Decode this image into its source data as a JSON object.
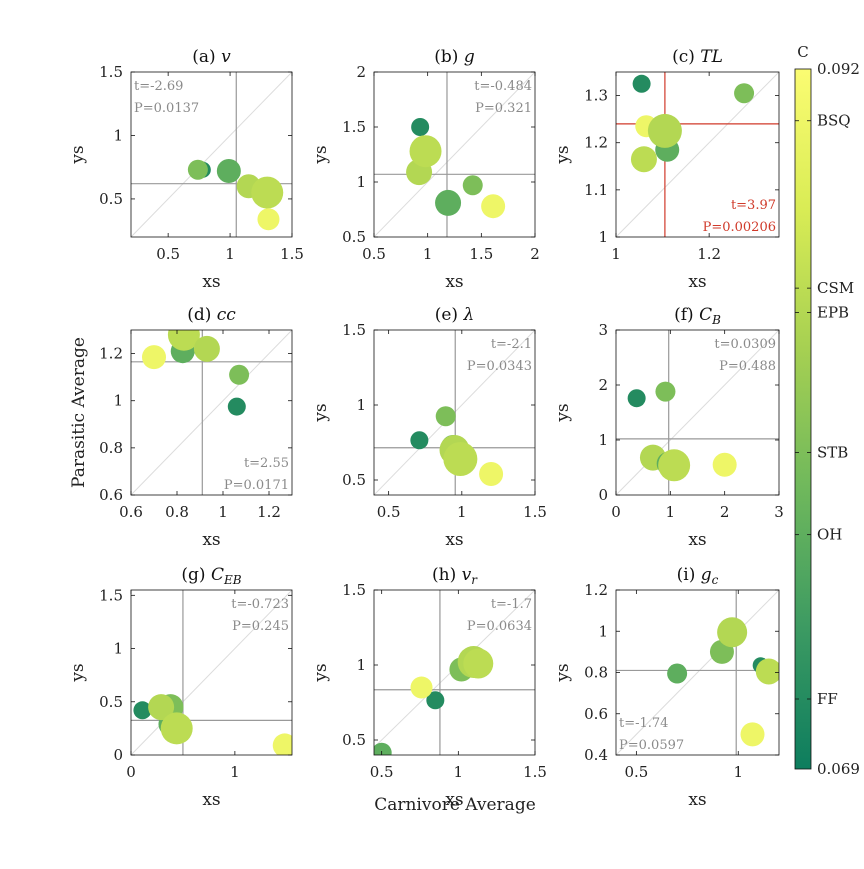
{
  "figure": {
    "supxlabel": "Carnivore Average",
    "supylabel": "Parasitic Average",
    "colorbar": {
      "title": "C",
      "min_label": "0.069",
      "max_label": "0.092",
      "min": 0.069,
      "max": 0.092,
      "colors": [
        "#0d7d5e",
        "#3c9a62",
        "#6fb85c",
        "#a6d052",
        "#d9ec55",
        "#fbfc72"
      ],
      "ticks": [
        {
          "label": "BSQ",
          "value": 0.0903
        },
        {
          "label": "CSM",
          "value": 0.0848
        },
        {
          "label": "EPB",
          "value": 0.084
        },
        {
          "label": "STB",
          "value": 0.0794
        },
        {
          "label": "OH",
          "value": 0.0767
        },
        {
          "label": "FF",
          "value": 0.0713
        }
      ]
    }
  },
  "chart_data": [
    {
      "type": "scatter",
      "title": "(a) v",
      "xlabel": "xs",
      "ylabel": "ys",
      "xlim": [
        0.2,
        1.5
      ],
      "ylim": [
        0.2,
        1.5
      ],
      "xticks": [
        0.5,
        1,
        1.5
      ],
      "yticks": [
        0.5,
        1,
        1.5
      ],
      "vline": 1.05,
      "hline": 0.62,
      "stat": {
        "t": "t=-2.69",
        "p": "P=0.0137",
        "pos": "top-left",
        "significant": false
      },
      "points": [
        {
          "x": 0.78,
          "y": 0.73,
          "c": 0.0713,
          "s": 8
        },
        {
          "x": 0.74,
          "y": 0.73,
          "c": 0.0794,
          "s": 10
        },
        {
          "x": 0.99,
          "y": 0.72,
          "c": 0.0767,
          "s": 12
        },
        {
          "x": 1.15,
          "y": 0.6,
          "c": 0.084,
          "s": 12
        },
        {
          "x": 1.3,
          "y": 0.55,
          "c": 0.0848,
          "s": 16
        },
        {
          "x": 1.31,
          "y": 0.34,
          "c": 0.0903,
          "s": 11
        }
      ]
    },
    {
      "type": "scatter",
      "title": "(b) g",
      "xlabel": "xs",
      "ylabel": "ys",
      "xlim": [
        0.5,
        2
      ],
      "ylim": [
        0.5,
        2
      ],
      "xticks": [
        0.5,
        1,
        1.5,
        2
      ],
      "yticks": [
        0.5,
        1,
        1.5,
        2
      ],
      "vline": 1.18,
      "hline": 1.07,
      "stat": {
        "t": "t=-0.484",
        "p": "P=0.321",
        "pos": "top-right",
        "significant": false
      },
      "points": [
        {
          "x": 0.93,
          "y": 1.5,
          "c": 0.0713,
          "s": 9
        },
        {
          "x": 0.92,
          "y": 1.09,
          "c": 0.084,
          "s": 13
        },
        {
          "x": 0.98,
          "y": 1.28,
          "c": 0.0848,
          "s": 16
        },
        {
          "x": 1.19,
          "y": 0.81,
          "c": 0.0767,
          "s": 13
        },
        {
          "x": 1.42,
          "y": 0.97,
          "c": 0.0794,
          "s": 10
        },
        {
          "x": 1.61,
          "y": 0.78,
          "c": 0.0903,
          "s": 12
        }
      ]
    },
    {
      "type": "scatter",
      "title": "(c) TL",
      "xlabel": "xs",
      "ylabel": "ys",
      "xlim": [
        1.0,
        1.35
      ],
      "ylim": [
        1.0,
        1.35
      ],
      "xticks": [
        1,
        1.2
      ],
      "yticks": [
        1,
        1.1,
        1.2,
        1.3
      ],
      "vline": 1.105,
      "hline": 1.24,
      "stat": {
        "t": "t=3.97",
        "p": "P=0.00206",
        "pos": "bottom-right",
        "significant": true
      },
      "points": [
        {
          "x": 1.055,
          "y": 1.325,
          "c": 0.0713,
          "s": 9
        },
        {
          "x": 1.275,
          "y": 1.305,
          "c": 0.0794,
          "s": 10
        },
        {
          "x": 1.065,
          "y": 1.235,
          "c": 0.0903,
          "s": 11
        },
        {
          "x": 1.11,
          "y": 1.185,
          "c": 0.0767,
          "s": 12
        },
        {
          "x": 1.105,
          "y": 1.225,
          "c": 0.084,
          "s": 17
        },
        {
          "x": 1.06,
          "y": 1.165,
          "c": 0.0848,
          "s": 13
        }
      ]
    },
    {
      "type": "scatter",
      "title": "(d) cc",
      "xlabel": "xs",
      "ylabel": "Parasitic Average",
      "xlim": [
        0.6,
        1.3
      ],
      "ylim": [
        0.6,
        1.3
      ],
      "xticks": [
        0.6,
        0.8,
        1,
        1.2
      ],
      "yticks": [
        0.6,
        0.8,
        1,
        1.2
      ],
      "vline": 0.91,
      "hline": 1.165,
      "stat": {
        "t": "t=2.55",
        "p": "P=0.0171",
        "pos": "bottom-right",
        "significant": false
      },
      "points": [
        {
          "x": 0.7,
          "y": 1.185,
          "c": 0.0903,
          "s": 12
        },
        {
          "x": 0.825,
          "y": 1.21,
          "c": 0.0767,
          "s": 12
        },
        {
          "x": 0.83,
          "y": 1.28,
          "c": 0.0848,
          "s": 16
        },
        {
          "x": 0.93,
          "y": 1.22,
          "c": 0.084,
          "s": 13
        },
        {
          "x": 1.07,
          "y": 1.11,
          "c": 0.0794,
          "s": 10
        },
        {
          "x": 1.06,
          "y": 0.975,
          "c": 0.0713,
          "s": 9
        }
      ]
    },
    {
      "type": "scatter",
      "title": "(e) λ",
      "xlabel": "xs",
      "ylabel": "ys",
      "xlim": [
        0.4,
        1.5
      ],
      "ylim": [
        0.4,
        1.5
      ],
      "xticks": [
        0.5,
        1,
        1.5
      ],
      "yticks": [
        0.5,
        1,
        1.5
      ],
      "vline": 0.955,
      "hline": 0.715,
      "stat": {
        "t": "t=-2.1",
        "p": "P=0.0343",
        "pos": "top-right",
        "significant": false
      },
      "points": [
        {
          "x": 0.71,
          "y": 0.765,
          "c": 0.0713,
          "s": 9
        },
        {
          "x": 0.89,
          "y": 0.925,
          "c": 0.0794,
          "s": 10
        },
        {
          "x": 0.94,
          "y": 0.72,
          "c": 0.0767,
          "s": 12
        },
        {
          "x": 0.95,
          "y": 0.7,
          "c": 0.084,
          "s": 15
        },
        {
          "x": 0.99,
          "y": 0.64,
          "c": 0.0848,
          "s": 17
        },
        {
          "x": 1.2,
          "y": 0.54,
          "c": 0.0903,
          "s": 12
        }
      ]
    },
    {
      "type": "scatter",
      "title": "(f) C_B",
      "xlabel": "xs",
      "ylabel": "ys",
      "xlim": [
        0,
        3
      ],
      "ylim": [
        0,
        3
      ],
      "xticks": [
        0,
        1,
        2,
        3
      ],
      "yticks": [
        0,
        1,
        2,
        3
      ],
      "vline": 0.97,
      "hline": 1.02,
      "stat": {
        "t": "t=0.0309",
        "p": "P=0.488",
        "pos": "top-right",
        "significant": false
      },
      "points": [
        {
          "x": 0.38,
          "y": 1.76,
          "c": 0.0713,
          "s": 9
        },
        {
          "x": 0.91,
          "y": 1.88,
          "c": 0.0794,
          "s": 10
        },
        {
          "x": 0.68,
          "y": 0.68,
          "c": 0.084,
          "s": 13
        },
        {
          "x": 0.97,
          "y": 0.57,
          "c": 0.0767,
          "s": 12
        },
        {
          "x": 1.07,
          "y": 0.54,
          "c": 0.0848,
          "s": 16
        },
        {
          "x": 2.0,
          "y": 0.55,
          "c": 0.0903,
          "s": 12
        }
      ]
    },
    {
      "type": "scatter",
      "title": "(g) C_EB",
      "xlabel": "xs",
      "ylabel": "ys",
      "xlim": [
        0,
        1.55
      ],
      "ylim": [
        0,
        1.55
      ],
      "xticks": [
        0,
        1
      ],
      "yticks": [
        0,
        0.5,
        1,
        1.5
      ],
      "vline": 0.5,
      "hline": 0.325,
      "stat": {
        "t": "t=-0.723",
        "p": "P=0.245",
        "pos": "top-right",
        "significant": false
      },
      "points": [
        {
          "x": 0.11,
          "y": 0.42,
          "c": 0.0713,
          "s": 9
        },
        {
          "x": 0.38,
          "y": 0.29,
          "c": 0.0767,
          "s": 12
        },
        {
          "x": 0.38,
          "y": 0.45,
          "c": 0.0794,
          "s": 13
        },
        {
          "x": 0.29,
          "y": 0.45,
          "c": 0.084,
          "s": 13
        },
        {
          "x": 0.44,
          "y": 0.25,
          "c": 0.0848,
          "s": 16
        },
        {
          "x": 1.48,
          "y": 0.09,
          "c": 0.0903,
          "s": 12
        }
      ]
    },
    {
      "type": "scatter",
      "title": "(h) v_r",
      "xlabel": "xs",
      "ylabel": "ys",
      "xlim": [
        0.45,
        1.5
      ],
      "ylim": [
        0.4,
        1.5
      ],
      "xticks": [
        0.5,
        1,
        1.5
      ],
      "yticks": [
        0.5,
        1,
        1.5
      ],
      "vline": 0.88,
      "hline": 0.835,
      "stat": {
        "t": "t=-1.7",
        "p": "P=0.0634",
        "pos": "top-right",
        "significant": false
      },
      "points": [
        {
          "x": 0.5,
          "y": 0.415,
          "c": 0.0767,
          "s": 10
        },
        {
          "x": 0.85,
          "y": 0.765,
          "c": 0.0713,
          "s": 9
        },
        {
          "x": 0.76,
          "y": 0.85,
          "c": 0.0903,
          "s": 11
        },
        {
          "x": 1.02,
          "y": 0.97,
          "c": 0.0794,
          "s": 12
        },
        {
          "x": 1.1,
          "y": 1.02,
          "c": 0.084,
          "s": 16
        },
        {
          "x": 1.13,
          "y": 1.01,
          "c": 0.0848,
          "s": 15
        }
      ]
    },
    {
      "type": "scatter",
      "title": "(i) g_c",
      "xlabel": "xs",
      "ylabel": "ys",
      "xlim": [
        0.4,
        1.2
      ],
      "ylim": [
        0.4,
        1.2
      ],
      "xticks": [
        0.5,
        1
      ],
      "yticks": [
        0.4,
        0.6,
        0.8,
        1,
        1.2
      ],
      "vline": 0.99,
      "hline": 0.81,
      "stat": {
        "t": "t=-1.74",
        "p": "P=0.0597",
        "pos": "bottom-left",
        "significant": false
      },
      "points": [
        {
          "x": 0.7,
          "y": 0.795,
          "c": 0.0767,
          "s": 10
        },
        {
          "x": 0.92,
          "y": 0.9,
          "c": 0.0794,
          "s": 12
        },
        {
          "x": 0.97,
          "y": 0.995,
          "c": 0.084,
          "s": 15
        },
        {
          "x": 1.11,
          "y": 0.835,
          "c": 0.0713,
          "s": 8
        },
        {
          "x": 1.15,
          "y": 0.805,
          "c": 0.0848,
          "s": 13
        },
        {
          "x": 1.07,
          "y": 0.5,
          "c": 0.0903,
          "s": 12
        }
      ]
    }
  ]
}
